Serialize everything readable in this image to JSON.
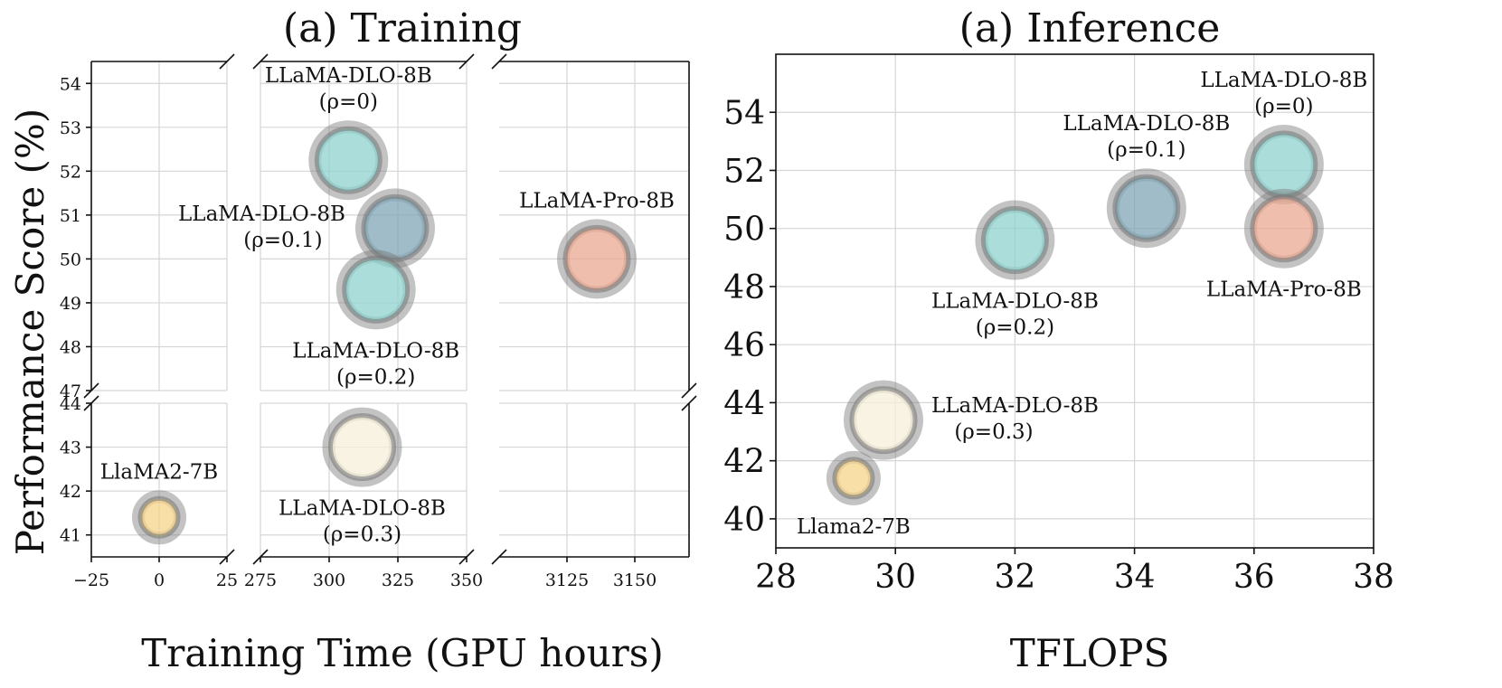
{
  "chart_data": [
    {
      "id": "training",
      "type": "scatter",
      "subtype": "bubble",
      "title": "(a) Training",
      "xlabel": "Training Time (GPU hours)",
      "ylabel": "Performance Score (%)",
      "x_segments": [
        {
          "xlim": [
            -25,
            25
          ],
          "ticks": [
            -25,
            0,
            25
          ],
          "tick_labels": [
            "−25",
            "0",
            "25"
          ]
        },
        {
          "xlim": [
            275,
            350
          ],
          "ticks": [
            275,
            300,
            325,
            350
          ],
          "tick_labels": [
            "275",
            "300",
            "325",
            "350"
          ]
        },
        {
          "xlim": [
            3100,
            3170
          ],
          "ticks": [
            3125,
            3150
          ],
          "tick_labels": [
            "3125",
            "3150"
          ]
        }
      ],
      "y_segments": [
        {
          "ylim": [
            47,
            54.5
          ],
          "ticks": [
            47,
            48,
            49,
            50,
            51,
            52,
            53,
            54
          ],
          "tick_labels": [
            "47",
            "48",
            "49",
            "50",
            "51",
            "52",
            "53",
            "54"
          ]
        },
        {
          "ylim": [
            40.5,
            44
          ],
          "ticks": [
            41,
            42,
            43,
            44
          ],
          "tick_labels": [
            "41",
            "42",
            "43",
            "44"
          ]
        }
      ],
      "points": [
        {
          "label": "LLaMA2-7B",
          "x": 0,
          "y": 41.4,
          "color": "#f6d38a",
          "size": "small",
          "label_lines": [
            "LlaMA2-7B"
          ],
          "label_position": "above"
        },
        {
          "label": "LLaMA-DLO-8B (ρ=0)",
          "x": 307,
          "y": 52.25,
          "color": "#8fd3cf",
          "size": "large",
          "label_lines": [
            "LLaMA-DLO-8B",
            "(ρ=0)"
          ],
          "label_position": "above"
        },
        {
          "label": "LLaMA-DLO-8B (ρ=0.1)",
          "x": 324,
          "y": 50.7,
          "color": "#7fa6b6",
          "size": "large",
          "label_lines": [
            "LLaMA-DLO-8B",
            "(ρ=0.1)"
          ],
          "label_position": "left"
        },
        {
          "label": "LLaMA-DLO-8B (ρ=0.2)",
          "x": 317,
          "y": 49.3,
          "color": "#8fd3cf",
          "size": "large",
          "label_lines": [
            "LLaMA-DLO-8B",
            "(ρ=0.2)"
          ],
          "label_position": "below"
        },
        {
          "label": "LLaMA-DLO-8B (ρ=0.3)",
          "x": 312,
          "y": 43.0,
          "color": "#f5efd9",
          "size": "large",
          "label_lines": [
            "LLaMA-DLO-8B",
            "(ρ=0.3)"
          ],
          "label_position": "below"
        },
        {
          "label": "LLaMA-Pro-8B",
          "x": 3136,
          "y": 50.0,
          "color": "#e9a890",
          "size": "large",
          "label_lines": [
            "LLaMA-Pro-8B"
          ],
          "label_position": "above"
        }
      ],
      "grid": true
    },
    {
      "id": "inference",
      "type": "scatter",
      "subtype": "bubble",
      "title": "(a) Inference",
      "xlabel": "TFLOPS",
      "ylabel": "",
      "xlim": [
        28,
        38
      ],
      "ylim": [
        39,
        56
      ],
      "xticks": [
        28,
        30,
        32,
        34,
        36,
        38
      ],
      "xtick_labels": [
        "28",
        "30",
        "32",
        "34",
        "36",
        "38"
      ],
      "yticks": [
        40,
        42,
        44,
        46,
        48,
        50,
        52,
        54
      ],
      "ytick_labels": [
        "40",
        "42",
        "44",
        "46",
        "48",
        "50",
        "52",
        "54"
      ],
      "points": [
        {
          "label": "Llama2-7B",
          "x": 29.3,
          "y": 41.4,
          "color": "#f6d38a",
          "size": "small",
          "label_lines": [
            "Llama2-7B"
          ],
          "label_position": "below"
        },
        {
          "label": "LLaMA-DLO-8B (ρ=0.3)",
          "x": 29.8,
          "y": 43.4,
          "color": "#f5efd9",
          "size": "large",
          "label_lines": [
            "LLaMA-DLO-8B",
            "(ρ=0.3)"
          ],
          "label_position": "right"
        },
        {
          "label": "LLaMA-DLO-8B (ρ=0.2)",
          "x": 32.0,
          "y": 49.6,
          "color": "#8fd3cf",
          "size": "large",
          "label_lines": [
            "LLaMA-DLO-8B",
            "(ρ=0.2)"
          ],
          "label_position": "below"
        },
        {
          "label": "LLaMA-DLO-8B (ρ=0.1)",
          "x": 34.2,
          "y": 50.7,
          "color": "#7fa6b6",
          "size": "large",
          "label_lines": [
            "LLaMA-DLO-8B",
            "(ρ=0.1)"
          ],
          "label_position": "above"
        },
        {
          "label": "LLaMA-DLO-8B (ρ=0)",
          "x": 36.5,
          "y": 52.2,
          "color": "#8fd3cf",
          "size": "large",
          "label_lines": [
            "LLaMA-DLO-8B",
            "(ρ=0)"
          ],
          "label_position": "above"
        },
        {
          "label": "LLaMA-Pro-8B",
          "x": 36.5,
          "y": 50.0,
          "color": "#e9a890",
          "size": "large",
          "label_lines": [
            "LLaMA-Pro-8B"
          ],
          "label_position": "below"
        }
      ],
      "grid": true
    }
  ]
}
